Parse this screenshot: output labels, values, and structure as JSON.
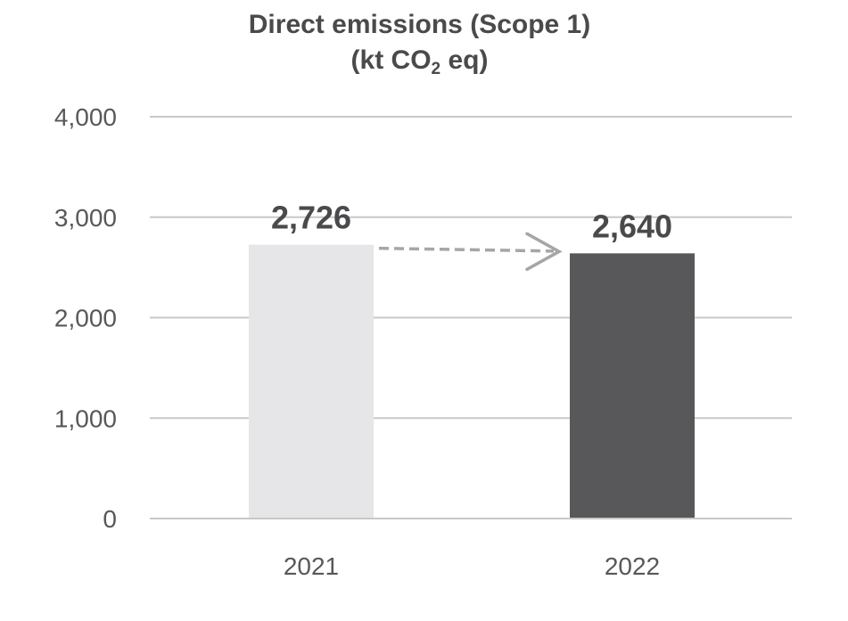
{
  "chart_data": {
    "type": "bar",
    "title_line1": "Direct emissions (Scope 1)",
    "title_line2_prefix": "(kt CO",
    "title_line2_sub": "2",
    "title_line2_suffix": " eq)",
    "categories": [
      "2021",
      "2022"
    ],
    "values": [
      2726,
      2640
    ],
    "value_labels": [
      "2,726",
      "2,640"
    ],
    "bar_colors": [
      "#e6e6e8",
      "#58585a"
    ],
    "ylim": [
      0,
      4000
    ],
    "yticks": [
      0,
      1000,
      2000,
      3000,
      4000
    ],
    "ytick_labels": [
      "0",
      "1,000",
      "2,000",
      "3,000",
      "4,000"
    ],
    "grid": true,
    "gridline_color": "#c8c8c8",
    "trend_arrow": {
      "from": "2021",
      "to": "2022",
      "style": "dashed",
      "color": "#a6a6a6"
    }
  }
}
